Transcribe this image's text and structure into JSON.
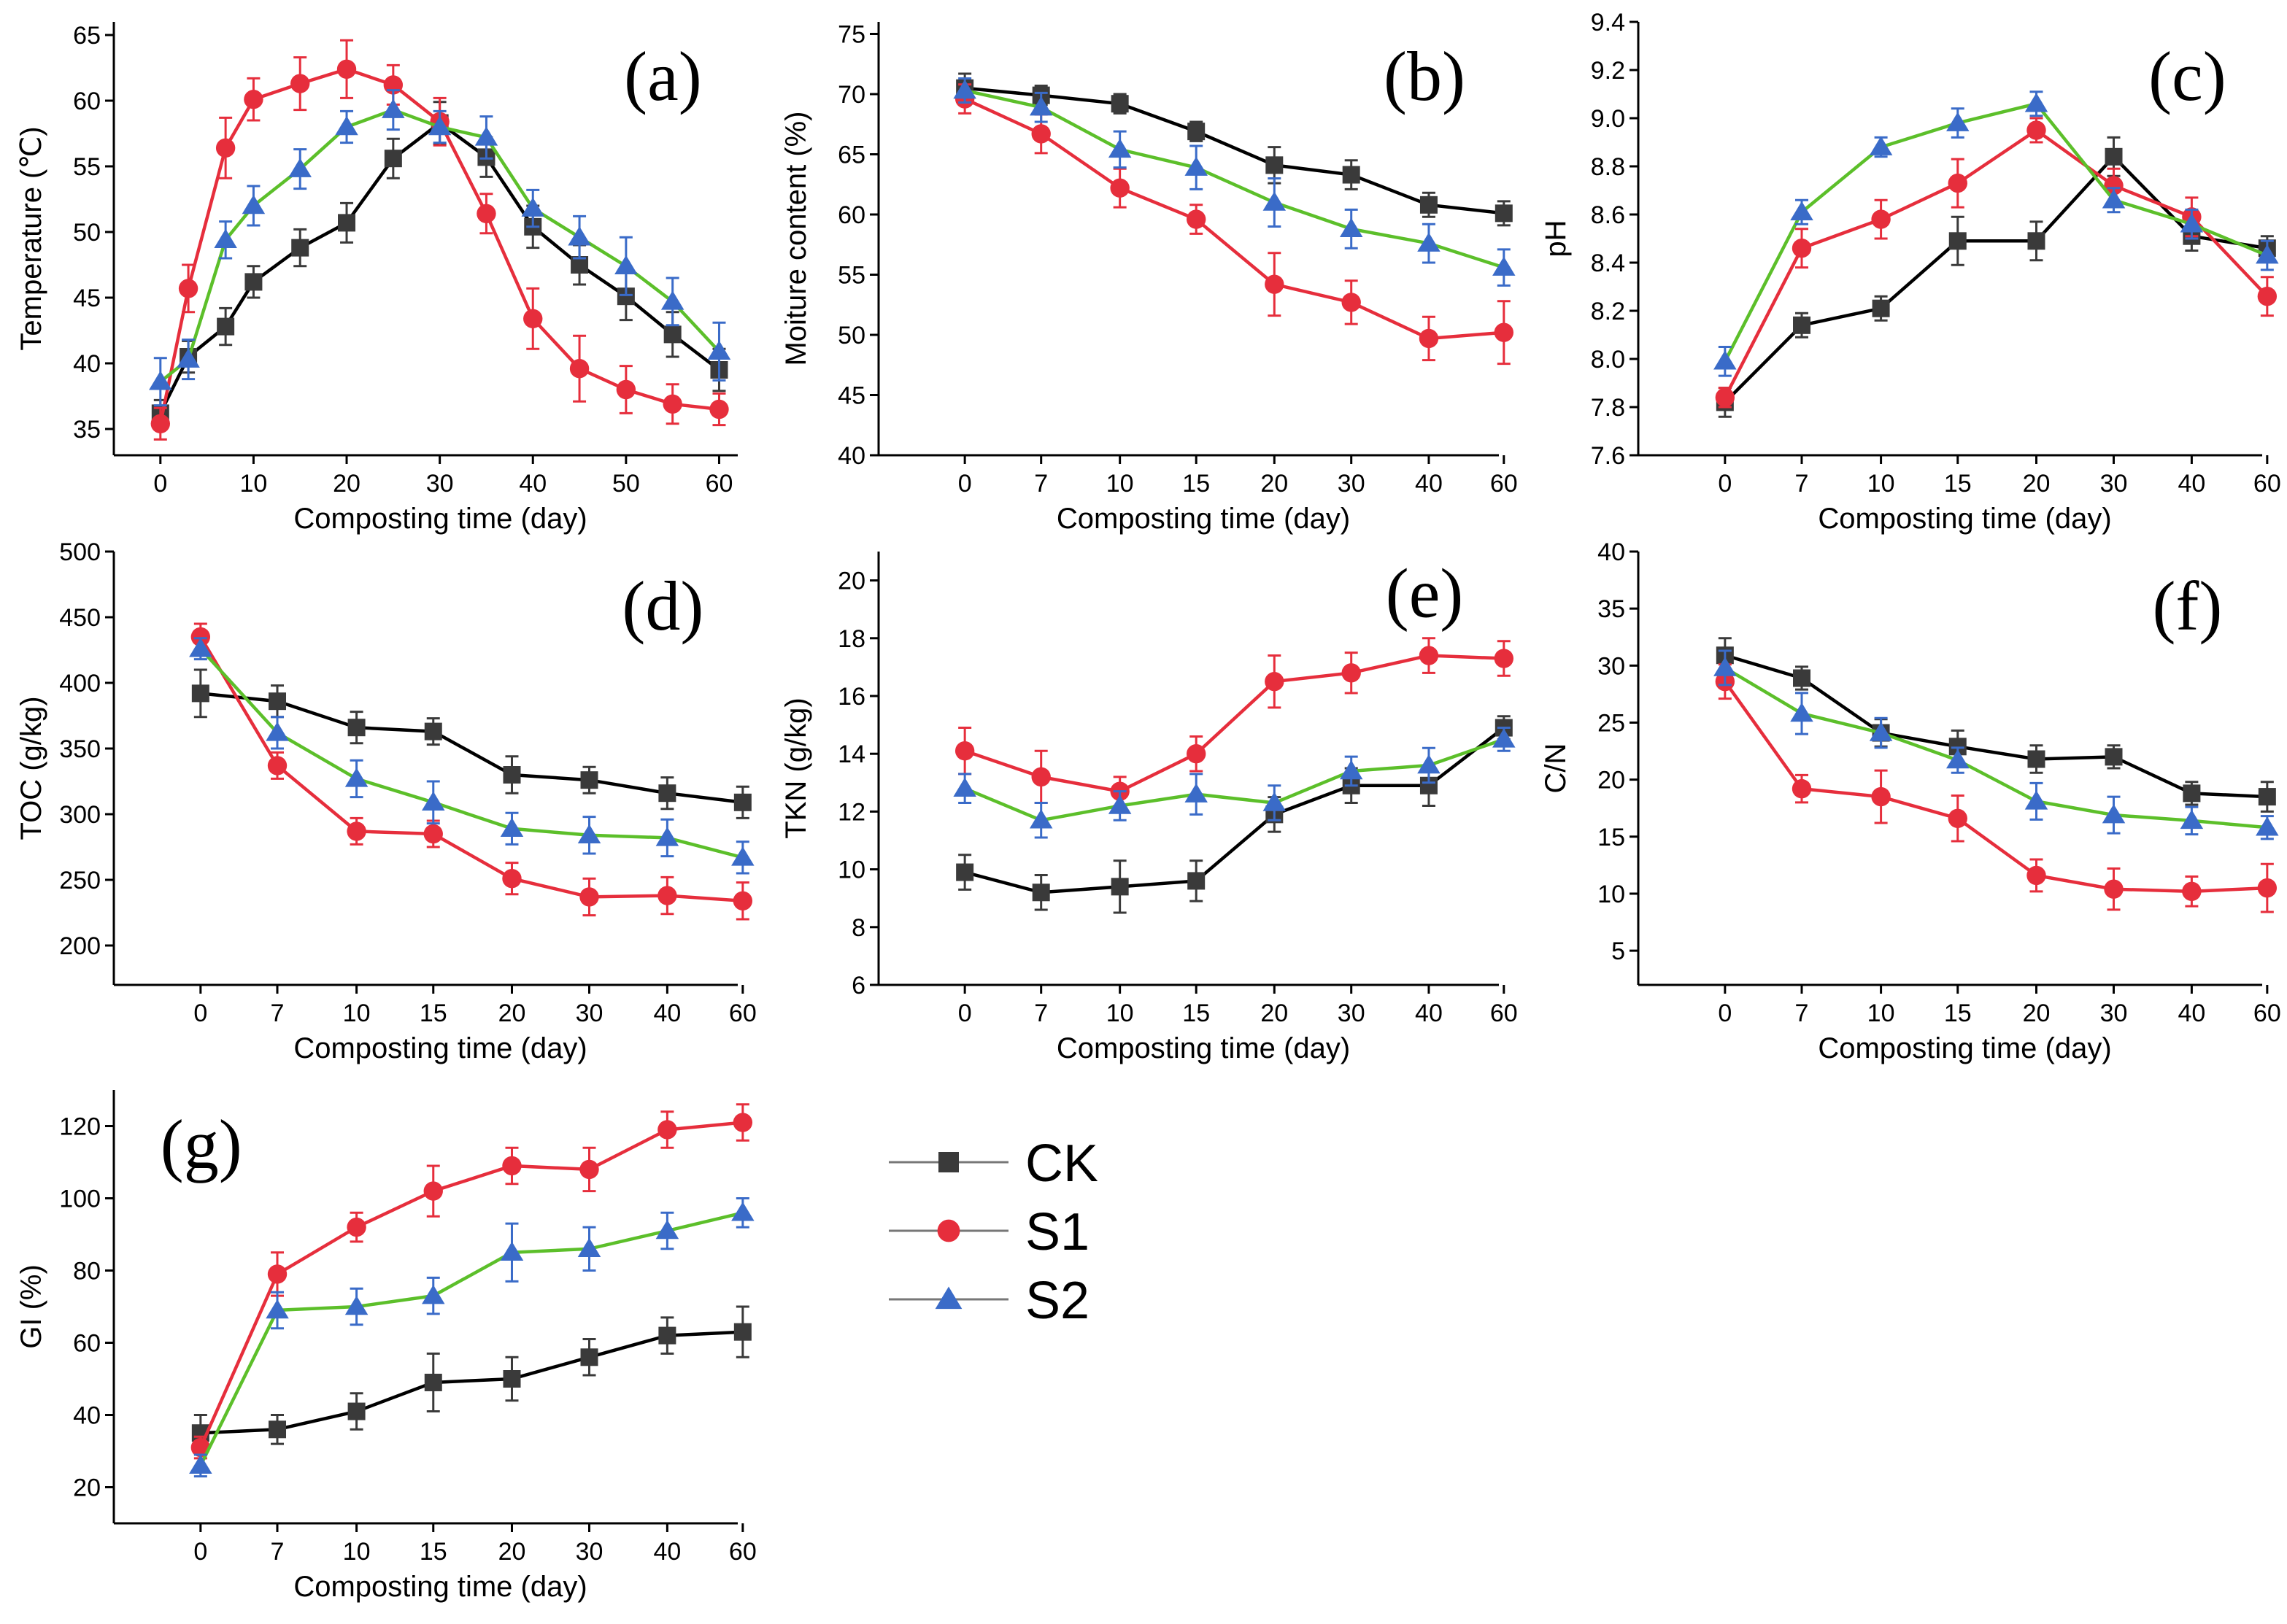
{
  "colors": {
    "CK": "#3a3a3a",
    "S1": "#e62e3c",
    "S2": "#3a6bc8",
    "S2_line": "#5cbf2a",
    "CK_line": "#000000",
    "S1_line": "#e62e3c"
  },
  "legend": [
    {
      "key": "CK",
      "label": "CK",
      "marker": "square"
    },
    {
      "key": "S1",
      "label": "S1",
      "marker": "circle"
    },
    {
      "key": "S2",
      "label": "S2",
      "marker": "triangle"
    }
  ],
  "chart_data": [
    {
      "id": "a",
      "panel_label": "(a)",
      "type": "line",
      "xlabel": "Composting time (day)",
      "ylabel": "Temperature (℃)",
      "x_mode": "numeric",
      "xlim": [
        -5,
        62
      ],
      "ylim": [
        33,
        66
      ],
      "xticks": [
        0,
        10,
        20,
        30,
        40,
        50,
        60
      ],
      "yticks": [
        35,
        40,
        45,
        50,
        55,
        60,
        65
      ],
      "series": [
        {
          "name": "CK",
          "x": [
            0,
            3,
            7,
            10,
            15,
            20,
            25,
            30,
            35,
            40,
            45,
            50,
            55,
            60
          ],
          "values": [
            36.2,
            40.5,
            42.8,
            46.2,
            48.8,
            50.7,
            55.6,
            58.3,
            55.7,
            50.4,
            47.5,
            45.1,
            42.2,
            39.5
          ],
          "err": [
            1.0,
            1.2,
            1.4,
            1.2,
            1.4,
            1.5,
            1.5,
            1.6,
            1.5,
            1.6,
            1.5,
            1.8,
            1.7,
            1.6
          ]
        },
        {
          "name": "S1",
          "x": [
            0,
            3,
            7,
            10,
            15,
            20,
            25,
            30,
            35,
            40,
            45,
            50,
            55,
            60
          ],
          "values": [
            35.4,
            45.7,
            56.4,
            60.1,
            61.3,
            62.4,
            61.2,
            58.4,
            51.4,
            43.4,
            39.6,
            38.0,
            36.9,
            36.5
          ],
          "err": [
            1.2,
            1.8,
            2.3,
            1.6,
            2.0,
            2.2,
            1.5,
            1.8,
            1.5,
            2.3,
            2.5,
            1.8,
            1.5,
            1.2
          ]
        },
        {
          "name": "S2",
          "x": [
            0,
            3,
            7,
            10,
            15,
            20,
            25,
            30,
            35,
            40,
            45,
            50,
            55,
            60
          ],
          "values": [
            38.6,
            40.3,
            49.4,
            52.0,
            54.8,
            58.0,
            59.3,
            58.0,
            57.2,
            51.8,
            49.6,
            47.4,
            44.7,
            40.9
          ],
          "err": [
            1.8,
            1.5,
            1.4,
            1.5,
            1.5,
            1.2,
            1.5,
            1.2,
            1.6,
            1.4,
            1.6,
            2.2,
            1.8,
            2.2
          ]
        }
      ]
    },
    {
      "id": "b",
      "panel_label": "(b)",
      "type": "line",
      "xlabel": "Composting time (day)",
      "ylabel": "Moiture content (%)",
      "x_mode": "categorical",
      "categories": [
        "0",
        "7",
        "10",
        "15",
        "20",
        "30",
        "40",
        "60"
      ],
      "ylim": [
        40,
        76
      ],
      "yticks": [
        40,
        45,
        50,
        55,
        60,
        65,
        70,
        75
      ],
      "series": [
        {
          "name": "CK",
          "values": [
            70.5,
            69.9,
            69.2,
            66.9,
            64.1,
            63.3,
            60.8,
            60.1
          ],
          "err": [
            1.2,
            0.8,
            0.8,
            0.8,
            1.5,
            1.2,
            1.0,
            1.0
          ]
        },
        {
          "name": "S1",
          "values": [
            69.6,
            66.7,
            62.2,
            59.6,
            54.2,
            52.7,
            49.7,
            50.2
          ],
          "err": [
            1.2,
            1.6,
            1.6,
            1.2,
            2.6,
            1.8,
            1.8,
            2.6
          ]
        },
        {
          "name": "S2",
          "values": [
            70.3,
            68.9,
            65.4,
            63.9,
            61.0,
            58.8,
            57.6,
            55.6
          ],
          "err": [
            1.0,
            1.2,
            1.5,
            1.8,
            2.0,
            1.6,
            1.6,
            1.5
          ]
        }
      ]
    },
    {
      "id": "c",
      "panel_label": "(c)",
      "type": "line",
      "xlabel": "Composting time (day)",
      "ylabel": "pH",
      "x_mode": "categorical",
      "categories": [
        "0",
        "7",
        "10",
        "15",
        "20",
        "30",
        "40",
        "60"
      ],
      "ylim": [
        7.6,
        9.4
      ],
      "yticks": [
        7.6,
        7.8,
        8.0,
        8.2,
        8.4,
        8.6,
        8.8,
        9.0,
        9.2,
        9.4
      ],
      "series": [
        {
          "name": "CK",
          "values": [
            7.82,
            8.14,
            8.21,
            8.49,
            8.49,
            8.84,
            8.51,
            8.46
          ],
          "err": [
            0.06,
            0.05,
            0.05,
            0.1,
            0.08,
            0.08,
            0.06,
            0.05
          ]
        },
        {
          "name": "S1",
          "values": [
            7.84,
            8.46,
            8.58,
            8.73,
            8.95,
            8.72,
            8.59,
            8.26
          ],
          "err": [
            0.04,
            0.08,
            0.08,
            0.1,
            0.05,
            0.07,
            0.08,
            0.08
          ]
        },
        {
          "name": "S2",
          "values": [
            7.99,
            8.61,
            8.88,
            8.98,
            9.06,
            8.66,
            8.56,
            8.43
          ],
          "err": [
            0.06,
            0.05,
            0.04,
            0.06,
            0.05,
            0.05,
            0.06,
            0.06
          ]
        }
      ]
    },
    {
      "id": "d",
      "panel_label": "(d)",
      "type": "line",
      "xlabel": "Composting time (day)",
      "ylabel": "TOC (g/kg)",
      "x_mode": "categorical",
      "categories": [
        "0",
        "7",
        "10",
        "15",
        "20",
        "30",
        "40",
        "60"
      ],
      "ylim": [
        170,
        500
      ],
      "yticks": [
        200,
        250,
        300,
        350,
        400,
        450,
        500
      ],
      "series": [
        {
          "name": "CK",
          "values": [
            392,
            386,
            366,
            363,
            330,
            326,
            316,
            309
          ],
          "err": [
            18,
            12,
            12,
            10,
            14,
            10,
            12,
            12
          ]
        },
        {
          "name": "S1",
          "values": [
            435,
            337,
            287,
            285,
            251,
            237,
            238,
            234
          ],
          "err": [
            10,
            10,
            10,
            10,
            12,
            14,
            14,
            14
          ]
        },
        {
          "name": "S2",
          "values": [
            426,
            362,
            327,
            309,
            289,
            284,
            282,
            267
          ],
          "err": [
            8,
            12,
            14,
            16,
            12,
            14,
            14,
            12
          ]
        }
      ]
    },
    {
      "id": "e",
      "panel_label": "(e)",
      "type": "line",
      "xlabel": "Composting time (day)",
      "ylabel": "TKN (g/kg)",
      "x_mode": "categorical",
      "categories": [
        "0",
        "7",
        "10",
        "15",
        "20",
        "30",
        "40",
        "60"
      ],
      "ylim": [
        6,
        21
      ],
      "yticks": [
        6,
        8,
        10,
        12,
        14,
        16,
        18,
        20
      ],
      "series": [
        {
          "name": "CK",
          "values": [
            9.9,
            9.2,
            9.4,
            9.6,
            11.9,
            12.9,
            12.9,
            14.9
          ],
          "err": [
            0.6,
            0.6,
            0.9,
            0.7,
            0.6,
            0.6,
            0.7,
            0.4
          ]
        },
        {
          "name": "S1",
          "values": [
            14.1,
            13.2,
            12.7,
            14.0,
            16.5,
            16.8,
            17.4,
            17.3
          ],
          "err": [
            0.8,
            0.9,
            0.5,
            0.6,
            0.9,
            0.7,
            0.6,
            0.6
          ]
        },
        {
          "name": "S2",
          "values": [
            12.8,
            11.7,
            12.2,
            12.6,
            12.3,
            13.4,
            13.6,
            14.5
          ],
          "err": [
            0.5,
            0.6,
            0.5,
            0.7,
            0.6,
            0.5,
            0.6,
            0.4
          ]
        }
      ]
    },
    {
      "id": "f",
      "panel_label": "(f)",
      "type": "line",
      "xlabel": "Composting time (day)",
      "ylabel": "C/N",
      "x_mode": "categorical",
      "categories": [
        "0",
        "7",
        "10",
        "15",
        "20",
        "30",
        "40",
        "60"
      ],
      "ylim": [
        2,
        40
      ],
      "yticks": [
        5,
        10,
        15,
        20,
        25,
        30,
        35,
        40
      ],
      "series": [
        {
          "name": "CK",
          "values": [
            30.9,
            28.9,
            24.1,
            22.9,
            21.8,
            22.0,
            18.8,
            18.5
          ],
          "err": [
            1.5,
            1.0,
            1.2,
            1.4,
            1.2,
            1.0,
            1.0,
            1.3
          ]
        },
        {
          "name": "S1",
          "values": [
            28.6,
            19.2,
            18.5,
            16.6,
            11.6,
            10.4,
            10.2,
            10.5
          ],
          "err": [
            1.5,
            1.2,
            2.3,
            2.0,
            1.4,
            1.8,
            1.3,
            2.1
          ]
        },
        {
          "name": "S2",
          "values": [
            29.8,
            25.8,
            24.1,
            21.7,
            18.1,
            16.9,
            16.4,
            15.8
          ],
          "err": [
            1.5,
            1.8,
            1.3,
            1.1,
            1.6,
            1.6,
            1.2,
            1.0
          ]
        }
      ]
    },
    {
      "id": "g",
      "panel_label": "(g)",
      "type": "line",
      "xlabel": "Composting time (day)",
      "ylabel": "GI (%)",
      "x_mode": "categorical",
      "categories": [
        "0",
        "7",
        "10",
        "15",
        "20",
        "30",
        "40",
        "60"
      ],
      "ylim": [
        10,
        130
      ],
      "yticks": [
        20,
        40,
        60,
        80,
        100,
        120
      ],
      "series": [
        {
          "name": "CK",
          "values": [
            35,
            36,
            41,
            49,
            50,
            56,
            62,
            63
          ],
          "err": [
            5,
            4,
            5,
            8,
            6,
            5,
            5,
            7
          ]
        },
        {
          "name": "S1",
          "values": [
            31,
            79,
            92,
            102,
            109,
            108,
            119,
            121
          ],
          "err": [
            3,
            6,
            4,
            7,
            5,
            6,
            5,
            5
          ]
        },
        {
          "name": "S2",
          "values": [
            26,
            69,
            70,
            73,
            85,
            86,
            91,
            96
          ],
          "err": [
            3,
            5,
            5,
            5,
            8,
            6,
            5,
            4
          ]
        }
      ]
    }
  ]
}
